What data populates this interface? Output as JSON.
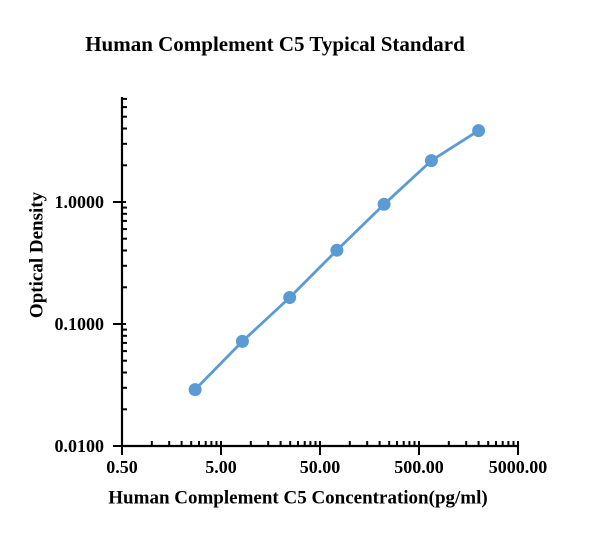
{
  "figure": {
    "title": "Human Complement C5 Typical Standard",
    "y_axis_label": "Optical Density",
    "x_axis_label": "Human Complement C5 Concentration(pg/ml)"
  },
  "chart_data": {
    "type": "line",
    "title": "Human Complement C5 Typical Standard",
    "xlabel": "Human Complement C5 Concentration(pg/ml)",
    "ylabel": "Optical Density",
    "x_scale": "log",
    "y_scale": "log",
    "xlim": [
      0.5,
      5000
    ],
    "ylim": [
      0.01,
      7.3
    ],
    "grid": false,
    "legend": "none",
    "points": [
      {
        "concentration_pg_ml": 2.74,
        "od": 0.029
      },
      {
        "concentration_pg_ml": 8.23,
        "od": 0.072
      },
      {
        "concentration_pg_ml": 24.69,
        "od": 0.165
      },
      {
        "concentration_pg_ml": 74.07,
        "od": 0.403
      },
      {
        "concentration_pg_ml": 222.22,
        "od": 0.957
      },
      {
        "concentration_pg_ml": 666.67,
        "od": 2.183
      },
      {
        "concentration_pg_ml": 2000,
        "od": 3.846
      }
    ],
    "x_ticks": [
      {
        "value": 0.5,
        "label": "0.50"
      },
      {
        "value": 5,
        "label": "5.00"
      },
      {
        "value": 50,
        "label": "50.00"
      },
      {
        "value": 500,
        "label": "500.00"
      },
      {
        "value": 5000,
        "label": "5000.00"
      }
    ],
    "y_ticks": [
      {
        "value": 1,
        "label": "1.0000"
      },
      {
        "value": 0.1,
        "label": "0.1000"
      },
      {
        "value": 0.01,
        "label": "0.0100"
      }
    ],
    "colors": {
      "curve": "#5B9BD5",
      "axis": "#000000",
      "text": "#000000",
      "background": "#FFFFFF"
    }
  }
}
